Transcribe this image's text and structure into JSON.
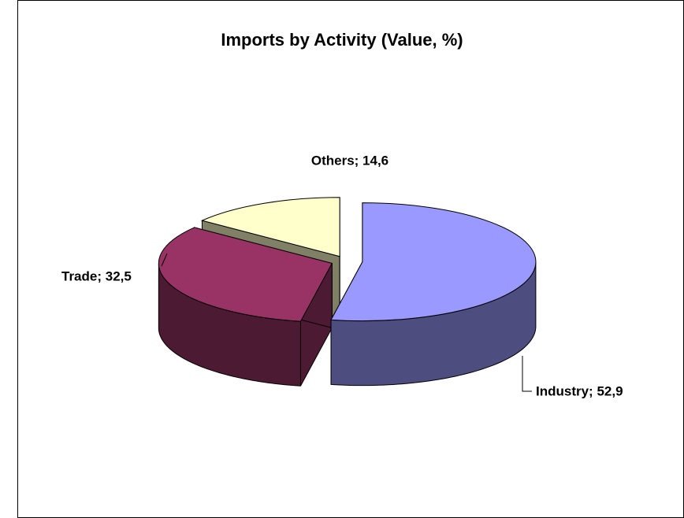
{
  "chart_data": {
    "type": "pie",
    "title": "Imports by Activity (Value, %)",
    "values": [
      52.9,
      32.5,
      14.6
    ],
    "value_labels": [
      "Industry; 52,9",
      "Trade; 32,5",
      "Others; 14,6"
    ],
    "colors": [
      "#9999ff",
      "#993366",
      "#ffffcc"
    ]
  }
}
